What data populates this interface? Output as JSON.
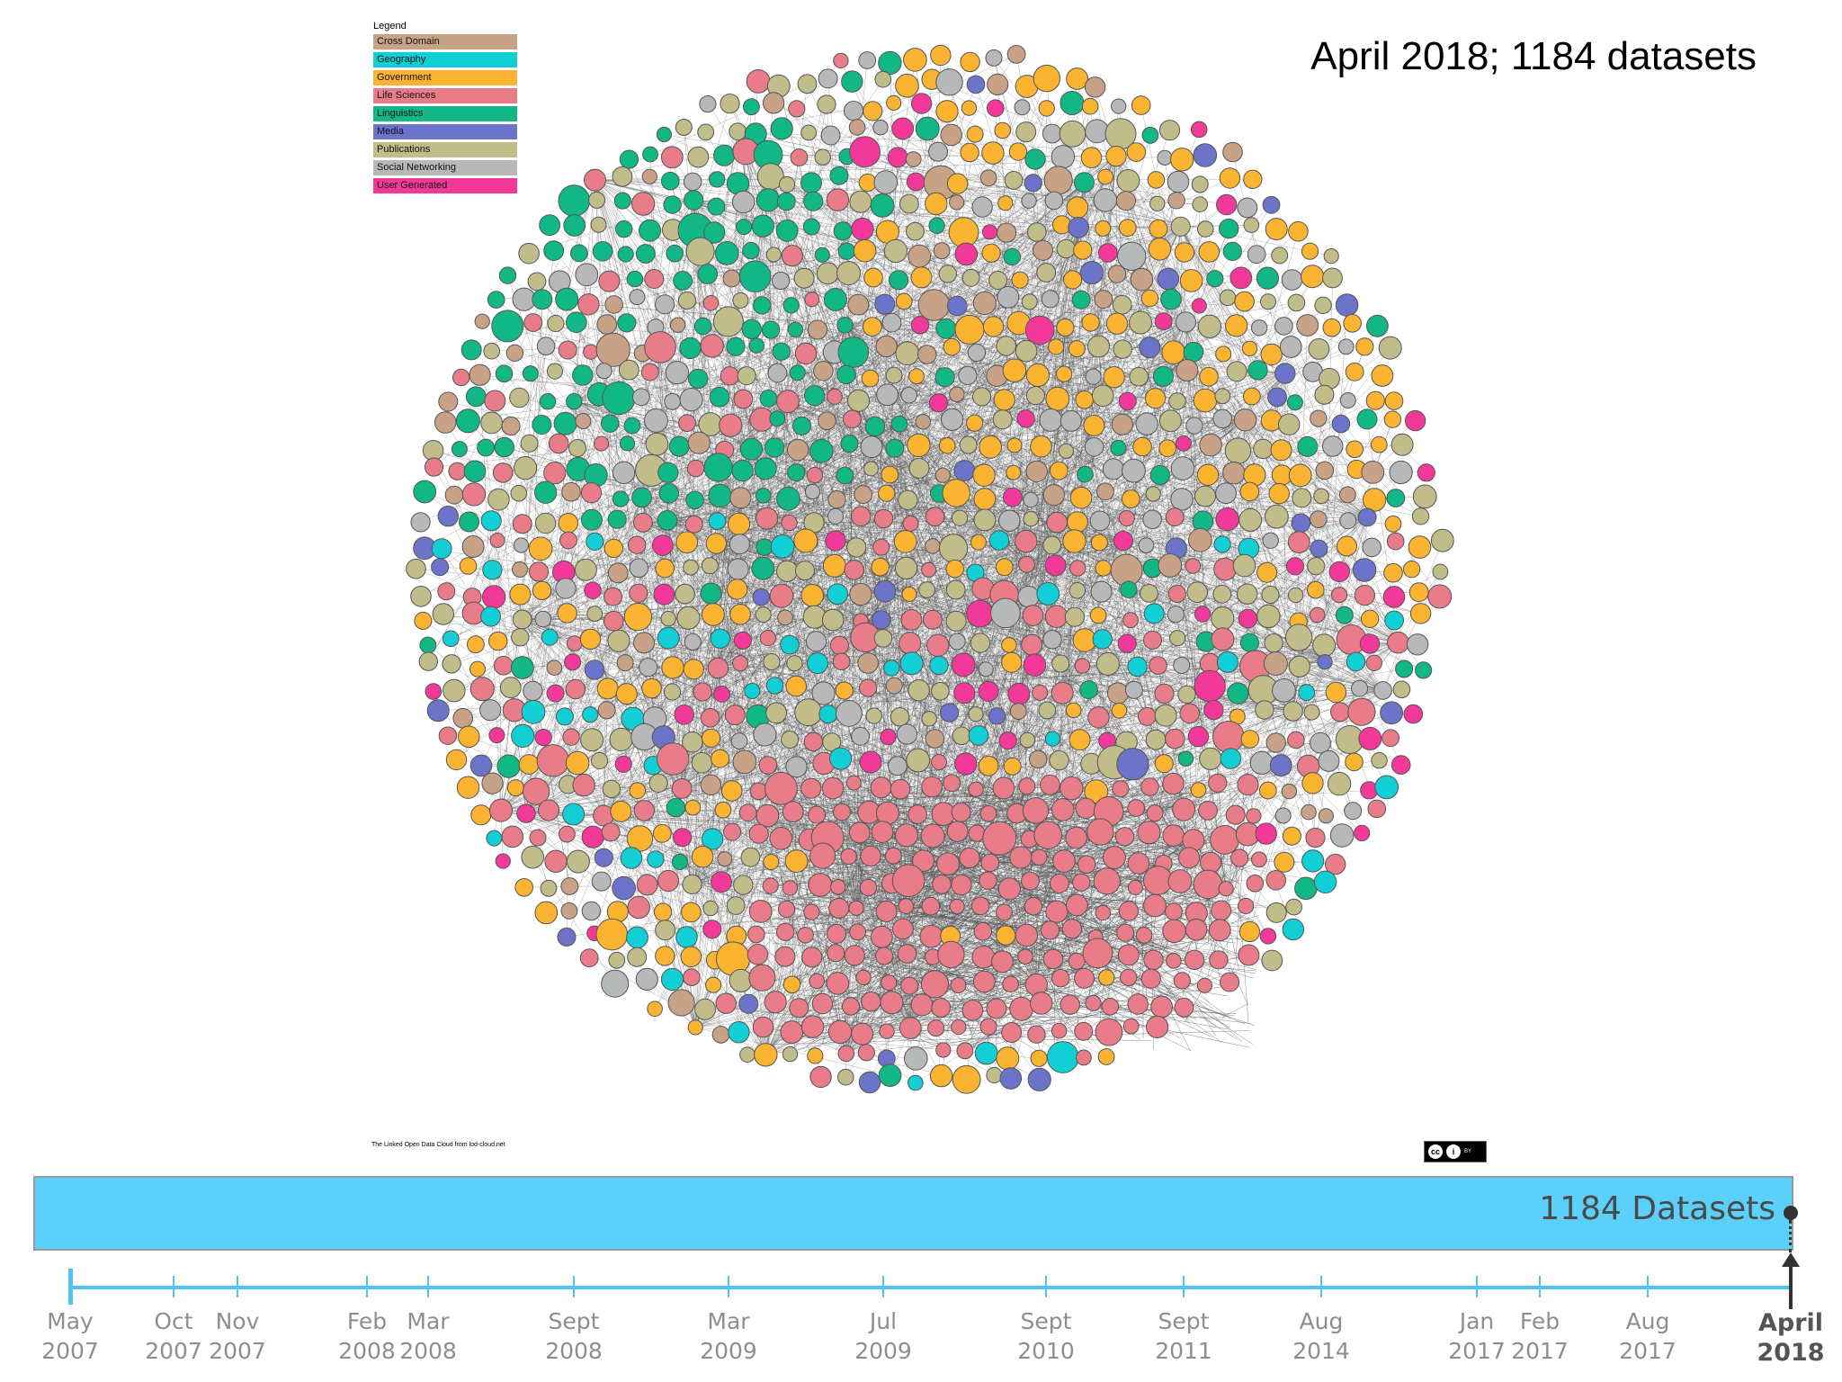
{
  "headline": "April 2018; 1184 datasets",
  "legend": {
    "title": "Legend",
    "items": [
      {
        "label": "Cross Domain",
        "color": "#c8a286"
      },
      {
        "label": "Geography",
        "color": "#12cfd6"
      },
      {
        "label": "Government",
        "color": "#fbb332"
      },
      {
        "label": "Life Sciences",
        "color": "#e87c88"
      },
      {
        "label": "Linguistics",
        "color": "#11b885"
      },
      {
        "label": "Media",
        "color": "#6b74c9"
      },
      {
        "label": "Publications",
        "color": "#c0bd8a"
      },
      {
        "label": "Social Networking",
        "color": "#b7b8b9"
      },
      {
        "label": "User Generated",
        "color": "#f2399a"
      }
    ]
  },
  "credit_text": "The Linked Open Data Cloud from lod-cloud.net",
  "license_badge": {
    "icon": "cc-by-icon",
    "text": "BY"
  },
  "dataset_bar": {
    "label": "1184 Datasets",
    "color": "#5bd0fb"
  },
  "timeline": {
    "color": "#52c3ee",
    "milestones": [
      {
        "month": "May",
        "year": "2007"
      },
      {
        "month": "Oct",
        "year": "2007"
      },
      {
        "month": "Nov",
        "year": "2007"
      },
      {
        "month": "Feb",
        "year": "2008"
      },
      {
        "month": "Mar",
        "year": "2008"
      },
      {
        "month": "Sept",
        "year": "2008"
      },
      {
        "month": "Mar",
        "year": "2009"
      },
      {
        "month": "Jul",
        "year": "2009"
      },
      {
        "month": "Sept",
        "year": "2010"
      },
      {
        "month": "Sept",
        "year": "2011"
      },
      {
        "month": "Aug",
        "year": "2014"
      },
      {
        "month": "Jan",
        "year": "2017"
      },
      {
        "month": "Feb",
        "year": "2017"
      },
      {
        "month": "Aug",
        "year": "2017"
      },
      {
        "month": "April",
        "year": "2018",
        "current": true
      }
    ]
  }
}
